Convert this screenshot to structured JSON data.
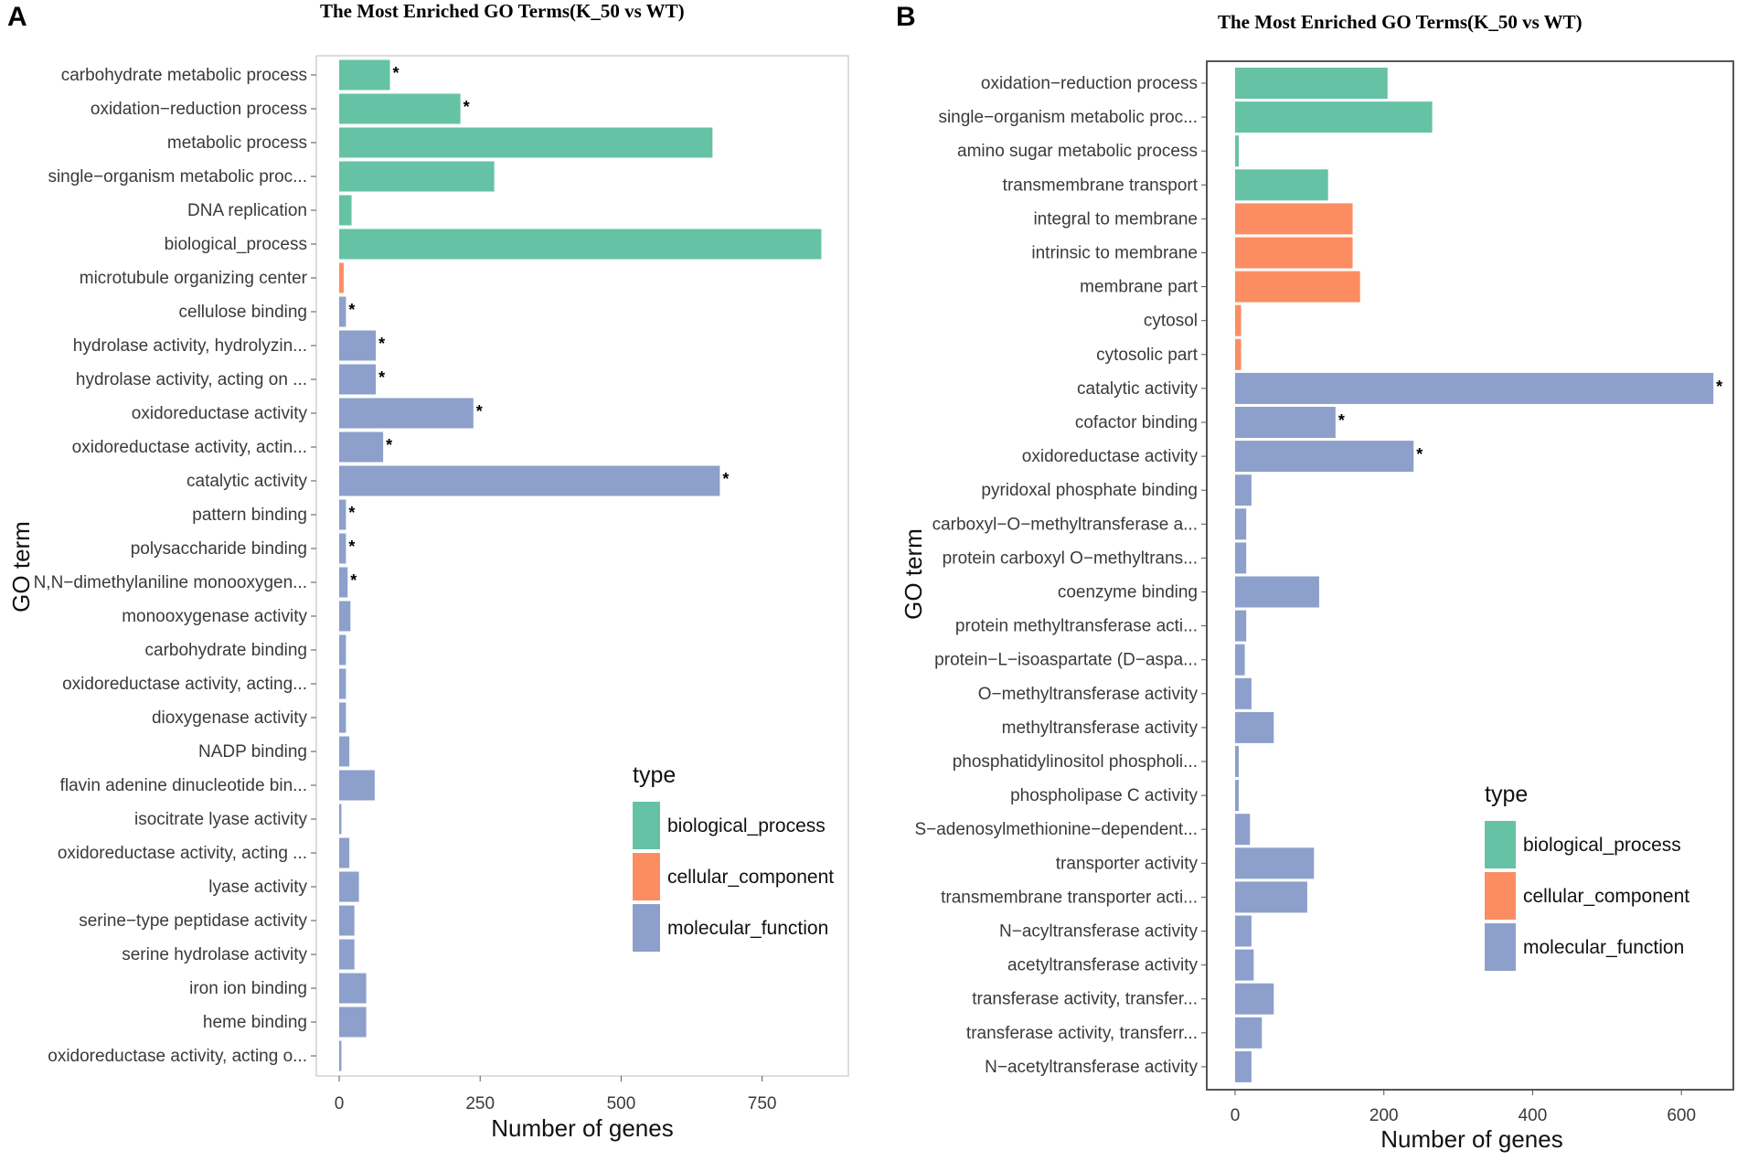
{
  "chart_data": [
    {
      "panel": "A",
      "type": "bar",
      "orientation": "horizontal",
      "title": "The Most Enriched GO Terms(K_50  vs WT)",
      "xlabel": "Number of genes",
      "ylabel": "GO term",
      "xlim": [
        0,
        890
      ],
      "xticks": [
        0,
        250,
        500,
        750
      ],
      "legend": {
        "title": "type",
        "position": "right",
        "items": [
          {
            "name": "biological_process",
            "color": "#66c2a5"
          },
          {
            "name": "cellular_component",
            "color": "#fc8d62"
          },
          {
            "name": "molecular_function",
            "color": "#8da0cb"
          }
        ]
      },
      "categories": [
        {
          "label": "carbohydrate metabolic process",
          "value": 90,
          "type": "biological_process",
          "significant": true
        },
        {
          "label": "oxidation−reduction process",
          "value": 215,
          "type": "biological_process",
          "significant": true
        },
        {
          "label": "metabolic process",
          "value": 662,
          "type": "biological_process",
          "significant": false
        },
        {
          "label": "single−organism metabolic proc...",
          "value": 275,
          "type": "biological_process",
          "significant": false
        },
        {
          "label": "DNA replication",
          "value": 22,
          "type": "biological_process",
          "significant": false
        },
        {
          "label": "biological_process",
          "value": 855,
          "type": "biological_process",
          "significant": false
        },
        {
          "label": "microtubule organizing center",
          "value": 8,
          "type": "cellular_component",
          "significant": false
        },
        {
          "label": "cellulose binding",
          "value": 12,
          "type": "molecular_function",
          "significant": true
        },
        {
          "label": "hydrolase activity, hydrolyzin...",
          "value": 65,
          "type": "molecular_function",
          "significant": true
        },
        {
          "label": "hydrolase activity, acting on ...",
          "value": 65,
          "type": "molecular_function",
          "significant": true
        },
        {
          "label": "oxidoreductase activity",
          "value": 238,
          "type": "molecular_function",
          "significant": true
        },
        {
          "label": "oxidoreductase activity, actin...",
          "value": 78,
          "type": "molecular_function",
          "significant": true
        },
        {
          "label": "catalytic activity",
          "value": 675,
          "type": "molecular_function",
          "significant": true
        },
        {
          "label": "pattern binding",
          "value": 12,
          "type": "molecular_function",
          "significant": true
        },
        {
          "label": "polysaccharide binding",
          "value": 12,
          "type": "molecular_function",
          "significant": true
        },
        {
          "label": "N,N−dimethylaniline monooxygen...",
          "value": 15,
          "type": "molecular_function",
          "significant": true
        },
        {
          "label": "monooxygenase activity",
          "value": 20,
          "type": "molecular_function",
          "significant": false
        },
        {
          "label": "carbohydrate binding",
          "value": 12,
          "type": "molecular_function",
          "significant": false
        },
        {
          "label": "oxidoreductase activity, acting...",
          "value": 12,
          "type": "molecular_function",
          "significant": false
        },
        {
          "label": "dioxygenase activity",
          "value": 12,
          "type": "molecular_function",
          "significant": false
        },
        {
          "label": "NADP binding",
          "value": 18,
          "type": "molecular_function",
          "significant": false
        },
        {
          "label": "flavin adenine dinucleotide bin...",
          "value": 63,
          "type": "molecular_function",
          "significant": false
        },
        {
          "label": "isocitrate lyase activity",
          "value": 4,
          "type": "molecular_function",
          "significant": false
        },
        {
          "label": "oxidoreductase activity, acting ...",
          "value": 18,
          "type": "molecular_function",
          "significant": false
        },
        {
          "label": "lyase activity",
          "value": 35,
          "type": "molecular_function",
          "significant": false
        },
        {
          "label": "serine−type peptidase activity",
          "value": 27,
          "type": "molecular_function",
          "significant": false
        },
        {
          "label": "serine hydrolase activity",
          "value": 27,
          "type": "molecular_function",
          "significant": false
        },
        {
          "label": "iron ion binding",
          "value": 48,
          "type": "molecular_function",
          "significant": false
        },
        {
          "label": "heme binding",
          "value": 48,
          "type": "molecular_function",
          "significant": false
        },
        {
          "label": "oxidoreductase activity, acting o...",
          "value": 4,
          "type": "molecular_function",
          "significant": false
        }
      ]
    },
    {
      "panel": "B",
      "type": "bar",
      "orientation": "horizontal",
      "title": "The Most Enriched GO Terms(K_50  vs WT)",
      "xlabel": "Number of genes",
      "ylabel": "GO term",
      "xlim": [
        0,
        660
      ],
      "xticks": [
        0,
        200,
        400,
        600
      ],
      "legend": {
        "title": "type",
        "position": "right",
        "items": [
          {
            "name": "biological_process",
            "color": "#66c2a5"
          },
          {
            "name": "cellular_component",
            "color": "#fc8d62"
          },
          {
            "name": "molecular_function",
            "color": "#8da0cb"
          }
        ]
      },
      "categories": [
        {
          "label": "oxidation−reduction process",
          "value": 205,
          "type": "biological_process",
          "significant": false
        },
        {
          "label": "single−organism metabolic proc...",
          "value": 265,
          "type": "biological_process",
          "significant": false
        },
        {
          "label": "amino sugar metabolic process",
          "value": 5,
          "type": "biological_process",
          "significant": false
        },
        {
          "label": "transmembrane transport",
          "value": 125,
          "type": "biological_process",
          "significant": false
        },
        {
          "label": "integral to membrane",
          "value": 158,
          "type": "cellular_component",
          "significant": false
        },
        {
          "label": "intrinsic to membrane",
          "value": 158,
          "type": "cellular_component",
          "significant": false
        },
        {
          "label": "membrane part",
          "value": 168,
          "type": "cellular_component",
          "significant": false
        },
        {
          "label": "cytosol",
          "value": 8,
          "type": "cellular_component",
          "significant": false
        },
        {
          "label": "cytosolic part",
          "value": 8,
          "type": "cellular_component",
          "significant": false
        },
        {
          "label": "catalytic activity",
          "value": 643,
          "type": "molecular_function",
          "significant": true
        },
        {
          "label": "cofactor binding",
          "value": 135,
          "type": "molecular_function",
          "significant": true
        },
        {
          "label": "oxidoreductase activity",
          "value": 240,
          "type": "molecular_function",
          "significant": true
        },
        {
          "label": "pyridoxal phosphate binding",
          "value": 22,
          "type": "molecular_function",
          "significant": false
        },
        {
          "label": "carboxyl−O−methyltransferase a...",
          "value": 15,
          "type": "molecular_function",
          "significant": false
        },
        {
          "label": "protein carboxyl O−methyltrans...",
          "value": 15,
          "type": "molecular_function",
          "significant": false
        },
        {
          "label": "coenzyme binding",
          "value": 113,
          "type": "molecular_function",
          "significant": false
        },
        {
          "label": "protein methyltransferase acti...",
          "value": 15,
          "type": "molecular_function",
          "significant": false
        },
        {
          "label": "protein−L−isoaspartate (D−aspa...",
          "value": 13,
          "type": "molecular_function",
          "significant": false
        },
        {
          "label": "O−methyltransferase activity",
          "value": 22,
          "type": "molecular_function",
          "significant": false
        },
        {
          "label": "methyltransferase activity",
          "value": 52,
          "type": "molecular_function",
          "significant": false
        },
        {
          "label": "phosphatidylinositol phospholi...",
          "value": 5,
          "type": "molecular_function",
          "significant": false
        },
        {
          "label": "phospholipase C activity",
          "value": 5,
          "type": "molecular_function",
          "significant": false
        },
        {
          "label": "S−adenosylmethionine−dependent...",
          "value": 20,
          "type": "molecular_function",
          "significant": false
        },
        {
          "label": "transporter activity",
          "value": 106,
          "type": "molecular_function",
          "significant": false
        },
        {
          "label": "transmembrane transporter acti...",
          "value": 97,
          "type": "molecular_function",
          "significant": false
        },
        {
          "label": "N−acyltransferase activity",
          "value": 22,
          "type": "molecular_function",
          "significant": false
        },
        {
          "label": "acetyltransferase activity",
          "value": 25,
          "type": "molecular_function",
          "significant": false
        },
        {
          "label": "transferase activity, transfer...",
          "value": 52,
          "type": "molecular_function",
          "significant": false
        },
        {
          "label": "transferase activity, transferr...",
          "value": 36,
          "type": "molecular_function",
          "significant": false
        },
        {
          "label": "N−acetyltransferase activity",
          "value": 22,
          "type": "molecular_function",
          "significant": false
        }
      ]
    }
  ],
  "panels": [
    {
      "letter": "A"
    },
    {
      "letter": "B"
    }
  ],
  "significance_marker": "*"
}
